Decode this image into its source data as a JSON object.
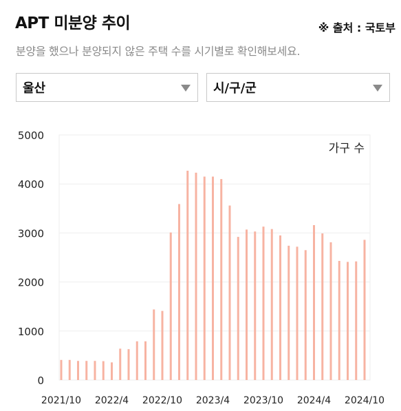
{
  "header": {
    "title": "APT 미분양 추이",
    "source": "※ 출처 : 국토부",
    "subtitle": "분양을 했으나 분양되지 않은 주택 수를 시기별로 확인해보세요."
  },
  "filters": {
    "region": {
      "selected": "울산"
    },
    "district": {
      "selected": "시/구/군"
    }
  },
  "colors": {
    "bar": "#f7b3a2",
    "grid": "#eeeeee",
    "axis_text": "#222222"
  },
  "chart_data": {
    "type": "bar",
    "unit_label": "가구 수",
    "ylim": [
      0,
      5000
    ],
    "yticks": [
      0,
      1000,
      2000,
      3000,
      4000,
      5000
    ],
    "x_tick_labels": [
      "2021/10",
      "2022/4",
      "2022/10",
      "2023/4",
      "2023/10",
      "2024/4",
      "2024/10"
    ],
    "x_tick_indices": [
      0,
      6,
      12,
      18,
      24,
      30,
      36
    ],
    "categories": [
      "2021/10",
      "2021/11",
      "2021/12",
      "2022/1",
      "2022/2",
      "2022/3",
      "2022/4",
      "2022/5",
      "2022/6",
      "2022/7",
      "2022/8",
      "2022/9",
      "2022/10",
      "2022/11",
      "2022/12",
      "2023/1",
      "2023/2",
      "2023/3",
      "2023/4",
      "2023/5",
      "2023/6",
      "2023/7",
      "2023/8",
      "2023/9",
      "2023/10",
      "2023/11",
      "2023/12",
      "2024/1",
      "2024/2",
      "2024/3",
      "2024/4",
      "2024/5",
      "2024/6",
      "2024/7",
      "2024/8",
      "2024/9",
      "2024/10"
    ],
    "values": [
      410,
      410,
      390,
      390,
      390,
      385,
      360,
      640,
      630,
      790,
      790,
      1440,
      1410,
      3010,
      3590,
      4270,
      4230,
      4150,
      4150,
      4100,
      3560,
      2920,
      3070,
      3030,
      3130,
      3080,
      2950,
      2740,
      2720,
      2650,
      3160,
      2990,
      2810,
      2430,
      2410,
      2420,
      2860
    ]
  }
}
